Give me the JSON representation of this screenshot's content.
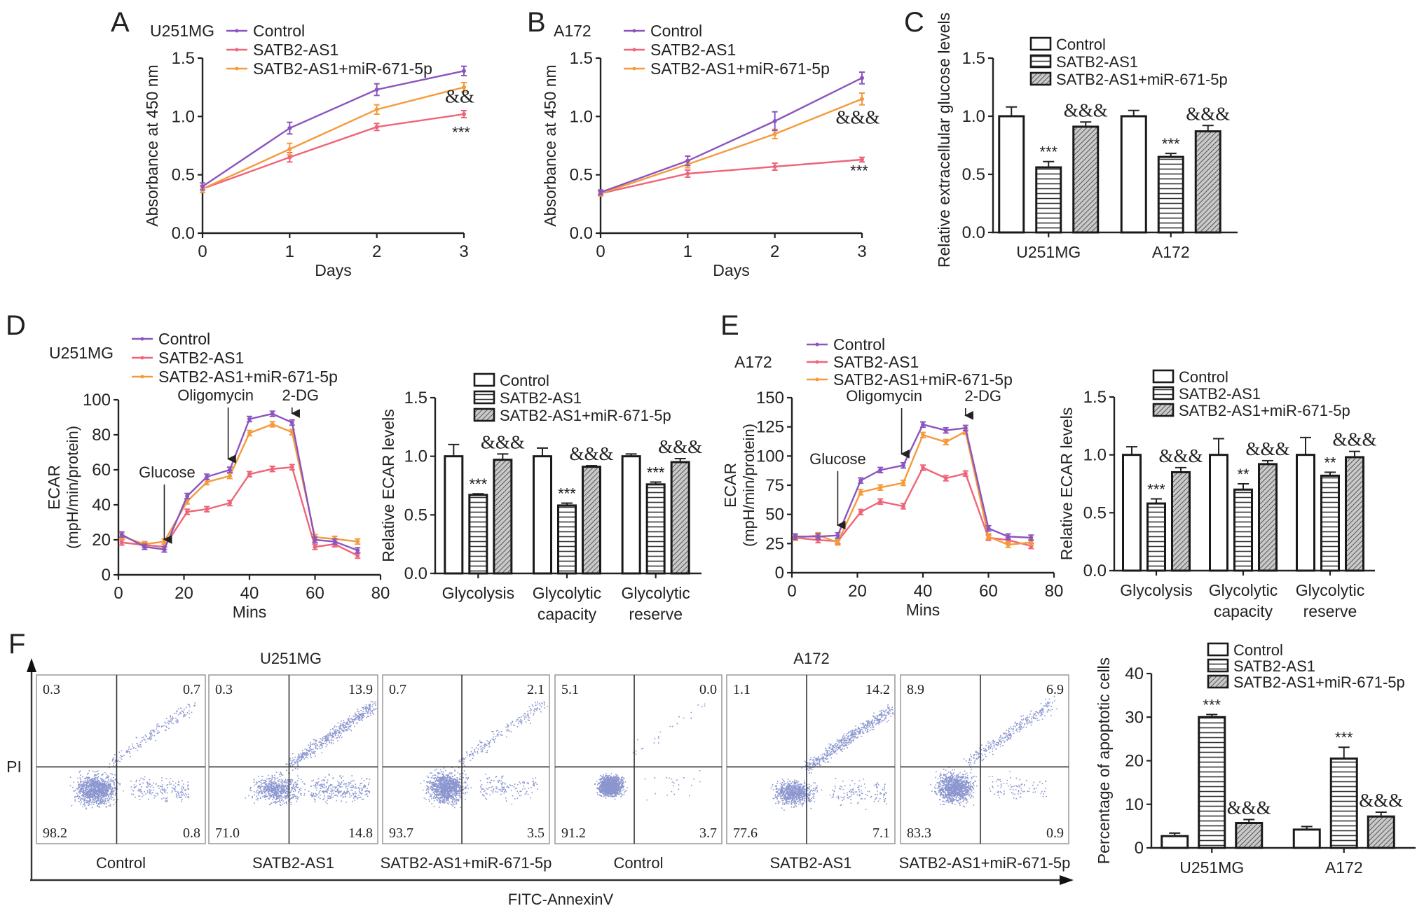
{
  "colors": {
    "Control": "#8a55bf",
    "SATB2-AS1": "#ef6478",
    "SATB2-AS1+miR-671-5p": "#f59a3c",
    "axis": "#222222",
    "dots": "#2b3fa8"
  },
  "groups": [
    "Control",
    "SATB2-AS1",
    "SATB2-AS1+miR-671-5p"
  ],
  "chart_data": [
    {
      "id": "A",
      "panel_label": "A",
      "type": "line",
      "cell_line": "U251MG",
      "xlabel": "Days",
      "ylabel": "Absorbance at 450 nm",
      "x": [
        0,
        1,
        2,
        3
      ],
      "xticks": [
        0,
        1,
        2,
        3
      ],
      "ylim": [
        0,
        1.5
      ],
      "yticks": [
        "0.0",
        "0.5",
        "1.0",
        "1.5"
      ],
      "series": [
        {
          "name": "Control",
          "values": [
            0.4,
            0.9,
            1.23,
            1.39
          ],
          "err": [
            0.03,
            0.05,
            0.05,
            0.04
          ]
        },
        {
          "name": "SATB2-AS1",
          "values": [
            0.38,
            0.65,
            0.91,
            1.02
          ],
          "err": [
            0.03,
            0.04,
            0.03,
            0.03
          ]
        },
        {
          "name": "SATB2-AS1+miR-671-5p",
          "values": [
            0.38,
            0.72,
            1.06,
            1.25
          ],
          "err": [
            0.03,
            0.05,
            0.04,
            0.04
          ]
        }
      ],
      "annotations": [
        {
          "text": "&&",
          "x": 3,
          "y": 1.12
        },
        {
          "text": "***",
          "x": 3,
          "y": 0.82
        }
      ]
    },
    {
      "id": "B",
      "panel_label": "B",
      "type": "line",
      "cell_line": "A172",
      "xlabel": "Days",
      "ylabel": "Absorbance at 450 nm",
      "x": [
        0,
        1,
        2,
        3
      ],
      "xticks": [
        0,
        1,
        2,
        3
      ],
      "ylim": [
        0,
        1.5
      ],
      "yticks": [
        "0.0",
        "0.5",
        "1.0",
        "1.5"
      ],
      "series": [
        {
          "name": "Control",
          "values": [
            0.35,
            0.62,
            0.96,
            1.33
          ],
          "err": [
            0.02,
            0.04,
            0.08,
            0.05
          ]
        },
        {
          "name": "SATB2-AS1",
          "values": [
            0.34,
            0.51,
            0.57,
            0.63
          ],
          "err": [
            0.02,
            0.03,
            0.03,
            0.02
          ]
        },
        {
          "name": "SATB2-AS1+miR-671-5p",
          "values": [
            0.34,
            0.59,
            0.85,
            1.15
          ],
          "err": [
            0.02,
            0.03,
            0.04,
            0.05
          ]
        }
      ],
      "annotations": [
        {
          "text": "&&&",
          "x": 3,
          "y": 0.94
        },
        {
          "text": "***",
          "x": 3,
          "y": 0.49
        }
      ]
    },
    {
      "id": "C",
      "panel_label": "C",
      "type": "bar",
      "ylabel": "Relative extracellular glucose levels",
      "categories": [
        "U251MG",
        "A172"
      ],
      "ylim": [
        0,
        1.5
      ],
      "yticks": [
        "0.0",
        "0.5",
        "1.0",
        "1.5"
      ],
      "series": [
        {
          "name": "Control",
          "values": [
            1.0,
            1.0
          ],
          "err": [
            0.08,
            0.05
          ],
          "marks": [
            "",
            ""
          ]
        },
        {
          "name": "SATB2-AS1",
          "values": [
            0.56,
            0.65
          ],
          "err": [
            0.05,
            0.03
          ],
          "marks": [
            "***",
            "***"
          ]
        },
        {
          "name": "SATB2-AS1+miR-671-5p",
          "values": [
            0.91,
            0.87
          ],
          "err": [
            0.04,
            0.05
          ],
          "marks": [
            "&&&",
            "&&&"
          ]
        }
      ]
    },
    {
      "id": "D-line",
      "panel_label": "D",
      "type": "line",
      "cell_line": "U251MG",
      "xlabel": "Mins",
      "ylabel": "ECAR",
      "ylabel2": "(mpH/min/protein)",
      "x": [
        1,
        8,
        14,
        21,
        27,
        34,
        40,
        47,
        53,
        60,
        66,
        73
      ],
      "xlim": [
        0,
        80
      ],
      "xticks": [
        0,
        20,
        40,
        60,
        80
      ],
      "ylim": [
        0,
        100
      ],
      "yticks": [
        0,
        20,
        40,
        60,
        80,
        100
      ],
      "series": [
        {
          "name": "Control",
          "values": [
            23,
            16,
            14.5,
            45,
            56,
            60,
            89,
            92,
            87,
            20,
            19,
            14
          ]
        },
        {
          "name": "SATB2-AS1",
          "values": [
            18.5,
            17,
            16,
            36,
            37.5,
            41,
            57.5,
            60.5,
            61.5,
            16,
            17.5,
            11
          ]
        },
        {
          "name": "SATB2-AS1+miR-671-5p",
          "values": [
            22,
            17.5,
            19,
            42,
            53,
            56.5,
            81,
            86,
            81.5,
            21.5,
            20.5,
            19
          ]
        }
      ],
      "injections": [
        {
          "label": "Glucose",
          "x": 14,
          "y_top": 50,
          "y_bottom": 17
        },
        {
          "label": "Oligomycin",
          "x": 33.5,
          "y_top": 93,
          "y_bottom": 63
        },
        {
          "label": "2-DG",
          "x": 53,
          "y_top": 95,
          "y_bottom": 89
        }
      ]
    },
    {
      "id": "D-bar",
      "type": "bar",
      "ylabel": "Relative ECAR levels",
      "categories": [
        "Glycolysis",
        "Glycolytic capacity",
        "Glycolytic reserve"
      ],
      "ylim": [
        0,
        1.5
      ],
      "yticks": [
        "0.0",
        "0.5",
        "1.0",
        "1.5"
      ],
      "series": [
        {
          "name": "Control",
          "values": [
            1.0,
            1.0,
            1.0
          ],
          "err": [
            0.1,
            0.07,
            0.02
          ],
          "marks": [
            "",
            "",
            ""
          ]
        },
        {
          "name": "SATB2-AS1",
          "values": [
            0.67,
            0.58,
            0.76
          ],
          "err": [
            0.01,
            0.02,
            0.02
          ],
          "marks": [
            "***",
            "***",
            "***"
          ]
        },
        {
          "name": "SATB2-AS1+miR-671-5p",
          "values": [
            0.97,
            0.91,
            0.95
          ],
          "err": [
            0.05,
            0.01,
            0.03
          ],
          "marks": [
            "&&&",
            "&&&",
            "&&&"
          ]
        }
      ]
    },
    {
      "id": "E-line",
      "panel_label": "E",
      "type": "line",
      "cell_line": "A172",
      "xlabel": "Mins",
      "ylabel": "ECAR",
      "ylabel2": "(mpH/min/protein)",
      "x": [
        1,
        8,
        14,
        21,
        27,
        34,
        40,
        47,
        53,
        60,
        66,
        73
      ],
      "xlim": [
        0,
        80
      ],
      "xticks": [
        0,
        20,
        40,
        60,
        80
      ],
      "ylim": [
        0,
        150
      ],
      "yticks": [
        0,
        25,
        50,
        75,
        100,
        125,
        150
      ],
      "series": [
        {
          "name": "Control",
          "values": [
            31,
            31,
            32,
            79,
            88,
            92,
            127,
            122,
            124,
            38,
            31,
            30
          ]
        },
        {
          "name": "SATB2-AS1",
          "values": [
            30,
            28,
            27,
            52,
            61,
            57,
            90,
            81,
            85,
            30,
            28,
            23
          ]
        },
        {
          "name": "SATB2-AS1+miR-671-5p",
          "values": [
            30,
            32,
            26,
            69,
            73,
            77,
            118,
            112,
            121,
            31,
            24,
            26
          ]
        }
      ],
      "injections": [
        {
          "label": "Glucose",
          "x": 14,
          "y_top": 88,
          "y_bottom": 36
        },
        {
          "label": "Oligomycin",
          "x": 33.5,
          "y_top": 139,
          "y_bottom": 97
        },
        {
          "label": "2-DG",
          "x": 53,
          "y_top": 140,
          "y_bottom": 130
        }
      ]
    },
    {
      "id": "E-bar",
      "type": "bar",
      "ylabel": "Relative ECAR levels",
      "categories": [
        "Glycolysis",
        "Glycolytic capacity",
        "Glycolytic reserve"
      ],
      "ylim": [
        0,
        1.5
      ],
      "yticks": [
        "0.0",
        "0.5",
        "1.0",
        "1.5"
      ],
      "series": [
        {
          "name": "Control",
          "values": [
            1.0,
            1.0,
            1.0
          ],
          "err": [
            0.07,
            0.14,
            0.15
          ],
          "marks": [
            "",
            "",
            ""
          ]
        },
        {
          "name": "SATB2-AS1",
          "values": [
            0.58,
            0.7,
            0.82
          ],
          "err": [
            0.04,
            0.05,
            0.03
          ],
          "marks": [
            "***",
            "**",
            "**"
          ]
        },
        {
          "name": "SATB2-AS1+miR-671-5p",
          "values": [
            0.85,
            0.92,
            0.98
          ],
          "err": [
            0.04,
            0.03,
            0.05
          ],
          "marks": [
            "&&&",
            "&&&",
            "&&&"
          ]
        }
      ]
    },
    {
      "id": "F-flow",
      "panel_label": "F",
      "type": "scatter",
      "xlabel": "FITC-AnnexinV",
      "ylabel": "PI",
      "cell_lines": [
        "U251MG",
        "A172"
      ],
      "plots": [
        {
          "cell_line": "U251MG",
          "condition": "Control",
          "quadrants": {
            "ul": "0.3",
            "ur": "0.7",
            "ll": "98.2",
            "lr": "0.8"
          }
        },
        {
          "cell_line": "U251MG",
          "condition": "SATB2-AS1",
          "quadrants": {
            "ul": "0.3",
            "ur": "13.9",
            "ll": "71.0",
            "lr": "14.8"
          }
        },
        {
          "cell_line": "U251MG",
          "condition": "SATB2-AS1+miR-671-5p",
          "quadrants": {
            "ul": "0.7",
            "ur": "2.1",
            "ll": "93.7",
            "lr": "3.5"
          }
        },
        {
          "cell_line": "A172",
          "condition": "Control",
          "quadrants": {
            "ul": "5.1",
            "ur": "0.0",
            "ll": "91.2",
            "lr": "3.7"
          }
        },
        {
          "cell_line": "A172",
          "condition": "SATB2-AS1",
          "quadrants": {
            "ul": "1.1",
            "ur": "14.2",
            "ll": "77.6",
            "lr": "7.1"
          }
        },
        {
          "cell_line": "A172",
          "condition": "SATB2-AS1+miR-671-5p",
          "quadrants": {
            "ul": "8.9",
            "ur": "6.9",
            "ll": "83.3",
            "lr": "0.9"
          }
        }
      ]
    },
    {
      "id": "F-bar",
      "type": "bar",
      "ylabel": "Percentage of apoptotic cells",
      "categories": [
        "U251MG",
        "A172"
      ],
      "ylim": [
        0,
        40
      ],
      "yticks": [
        "0",
        "10",
        "20",
        "30",
        "40"
      ],
      "series": [
        {
          "name": "Control",
          "values": [
            2.7,
            4.2
          ],
          "err": [
            0.7,
            0.7
          ],
          "marks": [
            "",
            ""
          ]
        },
        {
          "name": "SATB2-AS1",
          "values": [
            30.0,
            20.5
          ],
          "err": [
            0.6,
            2.6
          ],
          "marks": [
            "***",
            "***"
          ]
        },
        {
          "name": "SATB2-AS1+miR-671-5p",
          "values": [
            5.7,
            7.2
          ],
          "err": [
            0.8,
            1.0
          ],
          "marks": [
            "&&&",
            "&&&"
          ]
        }
      ]
    }
  ]
}
